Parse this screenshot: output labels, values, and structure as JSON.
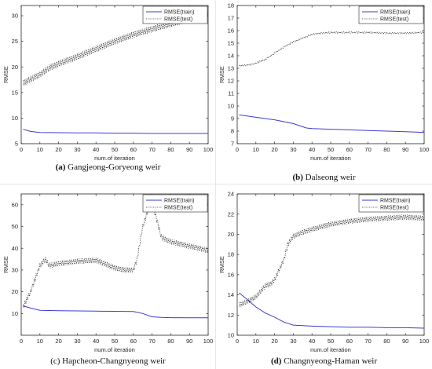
{
  "chart_data": [
    {
      "type": "line",
      "panel_label": "(a)",
      "caption": "Gangjeong-Goryeong weir",
      "xlabel": "num.of iteration",
      "ylabel": "RMSE",
      "xlim": [
        0,
        100
      ],
      "ylim": [
        5,
        32
      ],
      "xticks": [
        0,
        10,
        20,
        30,
        40,
        50,
        60,
        70,
        80,
        90,
        100
      ],
      "yticks": [
        5,
        10,
        15,
        20,
        25,
        30
      ],
      "legend_position": "top-right",
      "series": [
        {
          "name": "RMSE(train)",
          "style": "solid",
          "color": "#3b3bd6",
          "x": [
            1,
            5,
            10,
            20,
            30,
            40,
            50,
            60,
            70,
            80,
            90,
            100
          ],
          "y": [
            7.8,
            7.4,
            7.2,
            7.15,
            7.1,
            7.1,
            7.05,
            7.05,
            7.0,
            7.0,
            7.0,
            7.0
          ]
        },
        {
          "name": "RMSE(test)",
          "style": "dotted",
          "color": "#222222",
          "zigzag": 0.6,
          "x": [
            1,
            5,
            10,
            15,
            20,
            30,
            40,
            50,
            60,
            70,
            80,
            90,
            100
          ],
          "y": [
            16.8,
            17.6,
            18.5,
            19.8,
            20.6,
            22.0,
            23.5,
            25.0,
            26.3,
            27.4,
            28.4,
            29.4,
            30.4
          ]
        }
      ]
    },
    {
      "type": "line",
      "panel_label": "(b)",
      "caption": "Dalseong weir",
      "xlabel": "num.of iteration",
      "ylabel": "RMSE",
      "xlim": [
        0,
        100
      ],
      "ylim": [
        7,
        18
      ],
      "xticks": [
        0,
        10,
        20,
        30,
        40,
        50,
        60,
        70,
        80,
        90,
        100
      ],
      "yticks": [
        7,
        8,
        9,
        10,
        11,
        12,
        13,
        14,
        15,
        16,
        17,
        18
      ],
      "legend_position": "top-right",
      "series": [
        {
          "name": "RMSE(train)",
          "style": "solid",
          "color": "#3b3bd6",
          "x": [
            1,
            10,
            20,
            30,
            37,
            40,
            50,
            60,
            70,
            80,
            90,
            100
          ],
          "y": [
            9.3,
            9.1,
            8.9,
            8.6,
            8.25,
            8.2,
            8.15,
            8.1,
            8.05,
            8.0,
            7.95,
            7.9
          ]
        },
        {
          "name": "RMSE(test)",
          "style": "dotted",
          "color": "#222222",
          "zigzag": 0.05,
          "x": [
            1,
            8,
            15,
            20,
            25,
            30,
            35,
            40,
            45,
            50,
            60,
            70,
            80,
            90,
            100
          ],
          "y": [
            13.2,
            13.3,
            13.7,
            14.2,
            14.7,
            15.1,
            15.4,
            15.7,
            15.8,
            15.85,
            15.85,
            15.85,
            15.8,
            15.8,
            15.85
          ]
        }
      ]
    },
    {
      "type": "line",
      "panel_label": "(c)",
      "caption": "Hapcheon-Changnyeong weir",
      "xlabel": "num.of iteration",
      "ylabel": "RMSE",
      "xlim": [
        0,
        100
      ],
      "ylim": [
        0,
        65
      ],
      "xticks": [
        0,
        10,
        20,
        30,
        40,
        50,
        60,
        70,
        80,
        90,
        100
      ],
      "yticks": [
        10,
        20,
        30,
        40,
        50,
        60
      ],
      "legend_position": "top-right",
      "series": [
        {
          "name": "RMSE(train)",
          "style": "solid",
          "color": "#3b3bd6",
          "x": [
            1,
            5,
            10,
            20,
            30,
            40,
            50,
            60,
            65,
            70,
            75,
            80,
            90,
            100
          ],
          "y": [
            13.5,
            12.5,
            11.5,
            11.3,
            11.2,
            11.1,
            11.0,
            10.9,
            10.0,
            8.5,
            8.2,
            8.1,
            8.0,
            8.0
          ]
        },
        {
          "name": "RMSE(test)",
          "style": "dotted",
          "color": "#222222",
          "zigzag": 1.2,
          "x": [
            1,
            5,
            10,
            13,
            15,
            20,
            30,
            40,
            50,
            55,
            60,
            62,
            65,
            68,
            70,
            72,
            75,
            80,
            90,
            100
          ],
          "y": [
            13.0,
            20.0,
            32.0,
            35.0,
            32.0,
            33.0,
            34.0,
            34.5,
            31.0,
            30.0,
            30.0,
            35.0,
            50.0,
            58.0,
            60.0,
            55.0,
            45.0,
            43.0,
            41.0,
            39.0
          ]
        }
      ]
    },
    {
      "type": "line",
      "panel_label": "(d)",
      "caption": "Changnyeong-Haman weir",
      "xlabel": "num.of iteration",
      "ylabel": "RMSE",
      "xlim": [
        0,
        100
      ],
      "ylim": [
        10,
        24
      ],
      "xticks": [
        0,
        10,
        20,
        30,
        40,
        50,
        60,
        70,
        80,
        90,
        100
      ],
      "yticks": [
        10,
        12,
        14,
        16,
        18,
        20,
        22,
        24
      ],
      "legend_position": "top-right",
      "series": [
        {
          "name": "RMSE(train)",
          "style": "solid",
          "color": "#3b3bd6",
          "x": [
            1,
            5,
            10,
            15,
            20,
            25,
            30,
            35,
            40,
            50,
            60,
            70,
            80,
            90,
            100
          ],
          "y": [
            14.2,
            13.6,
            12.8,
            12.2,
            11.8,
            11.3,
            11.0,
            10.95,
            10.9,
            10.85,
            10.8,
            10.8,
            10.75,
            10.75,
            10.7
          ]
        },
        {
          "name": "RMSE(test)",
          "style": "dotted",
          "color": "#222222",
          "zigzag": 0.25,
          "x": [
            1,
            5,
            10,
            15,
            18,
            20,
            25,
            27,
            30,
            35,
            40,
            50,
            60,
            70,
            80,
            90,
            100
          ],
          "y": [
            13.0,
            13.3,
            13.8,
            14.9,
            15.1,
            15.5,
            17.5,
            19.0,
            19.8,
            20.2,
            20.5,
            21.0,
            21.3,
            21.5,
            21.6,
            21.7,
            21.6
          ]
        }
      ]
    }
  ]
}
